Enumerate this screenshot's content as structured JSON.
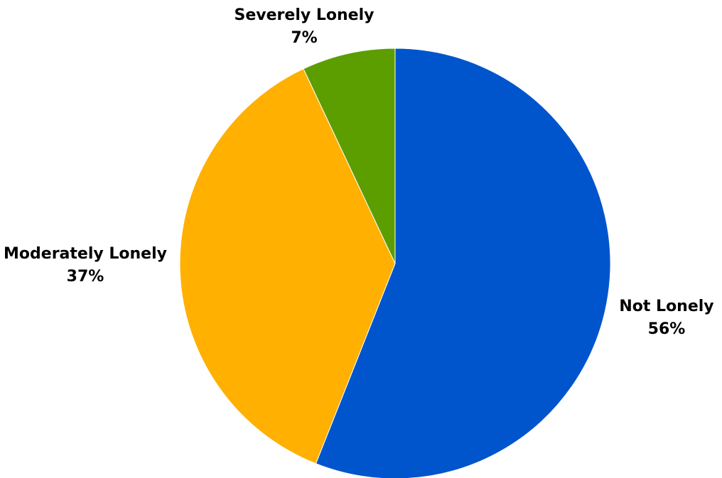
{
  "chart_data": {
    "type": "pie",
    "title": "",
    "slices": [
      {
        "label": "Not Lonely",
        "value": 56,
        "display": "56%",
        "color": "#0055cc"
      },
      {
        "label": "Moderately Lonely",
        "value": 37,
        "display": "37%",
        "color": "#ffb000"
      },
      {
        "label": "Severely Lonely",
        "value": 7,
        "display": "7%",
        "color": "#5c9e00"
      }
    ],
    "start_angle_deg": 0,
    "direction": "clockwise",
    "slice_border_color": "#ffffff",
    "legend": "none"
  }
}
